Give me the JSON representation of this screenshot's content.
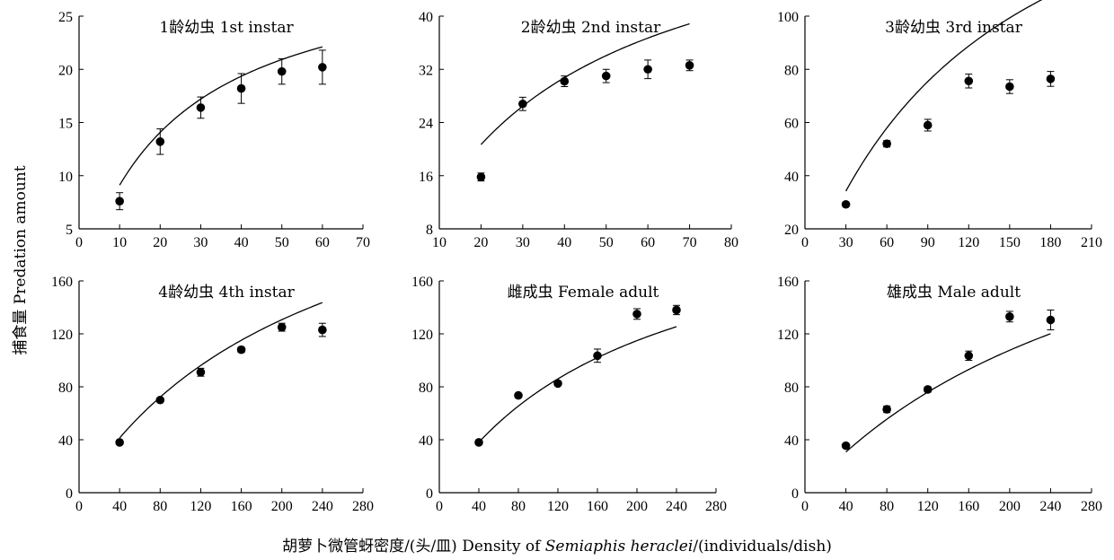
{
  "ylabel": "捕食量 Predation amount",
  "xlabel_prefix": "胡萝卜微管蚜密度/(头/皿) Density of ",
  "xlabel_species": "Semiaphis heraclei",
  "xlabel_suffix": "/(individuals/dish)",
  "chart_data": [
    {
      "type": "scatter",
      "title": "1龄幼虫 1st instar",
      "xlim": [
        0,
        70
      ],
      "xticks": [
        0,
        10,
        20,
        30,
        40,
        50,
        60,
        70
      ],
      "ylim": [
        5,
        25
      ],
      "yticks": [
        5,
        10,
        15,
        20,
        25
      ],
      "x": [
        10,
        20,
        30,
        40,
        50,
        60
      ],
      "y": [
        7.6,
        13.2,
        16.4,
        18.2,
        19.8,
        20.2
      ],
      "error": [
        0.8,
        1.2,
        1.0,
        1.4,
        1.2,
        1.6
      ],
      "fit": {
        "a": 1.29,
        "Th": 0.0323
      }
    },
    {
      "type": "scatter",
      "title": "2龄幼虫 2nd instar",
      "xlim": [
        10,
        80
      ],
      "xticks": [
        10,
        20,
        30,
        40,
        50,
        60,
        70,
        80
      ],
      "ylim": [
        8,
        40
      ],
      "yticks": [
        8,
        16,
        24,
        32,
        40
      ],
      "x": [
        20,
        30,
        40,
        50,
        60,
        70
      ],
      "y": [
        15.8,
        26.8,
        30.2,
        31.0,
        32.0,
        32.6
      ],
      "error": [
        0.6,
        1.0,
        0.8,
        1.0,
        1.4,
        0.8
      ],
      "fit": {
        "a": 1.58,
        "Th": 0.0167
      }
    },
    {
      "type": "scatter",
      "title": "3龄幼虫 3rd instar",
      "xlim": [
        0,
        210
      ],
      "xticks": [
        0,
        30,
        60,
        90,
        120,
        150,
        180,
        210
      ],
      "ylim": [
        20,
        100
      ],
      "yticks": [
        20,
        40,
        60,
        80,
        100
      ],
      "x": [
        30,
        60,
        90,
        120,
        150,
        180
      ],
      "y": [
        29.2,
        52.0,
        59.0,
        75.6,
        73.5,
        76.4
      ],
      "error": [
        0.8,
        1.2,
        2.2,
        2.6,
        2.6,
        2.8
      ],
      "fit": {
        "a": 1.39,
        "Th": 0.00527
      }
    },
    {
      "type": "scatter",
      "title": "4龄幼虫 4th instar",
      "xlim": [
        0,
        280
      ],
      "xticks": [
        0,
        40,
        80,
        120,
        160,
        200,
        240,
        280
      ],
      "ylim": [
        0,
        160
      ],
      "yticks": [
        0,
        40,
        80,
        120,
        160
      ],
      "x": [
        40,
        80,
        120,
        160,
        200,
        240
      ],
      "y": [
        38.0,
        70.0,
        91.0,
        108.0,
        125.0,
        123.0
      ],
      "error": [
        1.0,
        1.5,
        3.0,
        2.0,
        3.0,
        5.0
      ],
      "fit": {
        "a": 1.21,
        "Th": 0.00352
      }
    },
    {
      "type": "scatter",
      "title": "雌成虫 Female adult",
      "xlim": [
        0,
        280
      ],
      "xticks": [
        0,
        40,
        80,
        120,
        160,
        200,
        240,
        280
      ],
      "ylim": [
        0,
        160
      ],
      "yticks": [
        0,
        40,
        80,
        120,
        160
      ],
      "x": [
        40,
        80,
        120,
        160,
        200,
        240
      ],
      "y": [
        38.0,
        73.5,
        82.5,
        103.5,
        135.0,
        138.0
      ],
      "error": [
        1.0,
        1.5,
        1.5,
        5.0,
        4.0,
        3.5
      ],
      "fit": {
        "a": 1.14,
        "Th": 0.00432
      }
    },
    {
      "type": "scatter",
      "title": "雄成虫 Male adult",
      "xlim": [
        0,
        280
      ],
      "xticks": [
        0,
        40,
        80,
        120,
        160,
        200,
        240,
        280
      ],
      "ylim": [
        0,
        160
      ],
      "yticks": [
        0,
        40,
        80,
        120,
        160
      ],
      "x": [
        40,
        80,
        120,
        160,
        200,
        240
      ],
      "y": [
        35.5,
        63.0,
        78.0,
        103.5,
        133.0,
        130.5
      ],
      "error": [
        1.0,
        2.5,
        2.0,
        3.5,
        4.0,
        7.5
      ],
      "fit": {
        "a": 0.86,
        "Th": 0.00348
      }
    }
  ]
}
